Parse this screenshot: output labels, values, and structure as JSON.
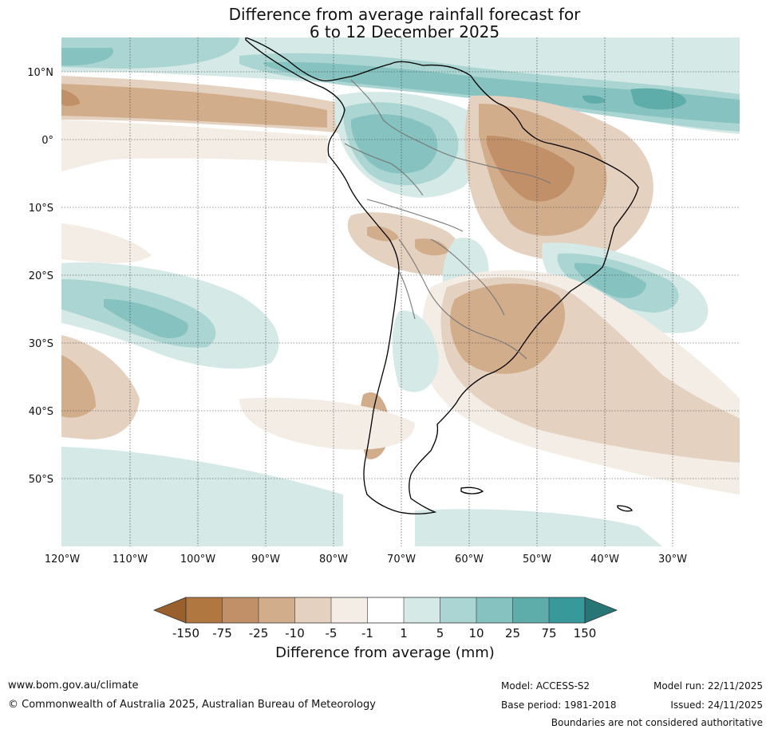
{
  "title": {
    "line1": "Difference from average rainfall forecast for",
    "line2": "6 to 12 December 2025"
  },
  "axes": {
    "lat_labels": [
      "10°N",
      "0°",
      "10°S",
      "20°S",
      "30°S",
      "40°S",
      "50°S"
    ],
    "lon_labels": [
      "120°W",
      "110°W",
      "100°W",
      "90°W",
      "80°W",
      "70°W",
      "60°W",
      "50°W",
      "40°W",
      "30°W"
    ]
  },
  "colorbar": {
    "tick_labels": [
      "-150",
      "-75",
      "-25",
      "-10",
      "-5",
      "-1",
      "1",
      "5",
      "10",
      "25",
      "75",
      "150"
    ],
    "colors": [
      "#99602d",
      "#b07840",
      "#c29068",
      "#d1ad8c",
      "#e4d1c0",
      "#f4ede6",
      "#ffffff",
      "#d5e9e6",
      "#abd5d2",
      "#85c2c0",
      "#5fadab",
      "#37999a",
      "#277575"
    ],
    "label": "Difference from average (mm)"
  },
  "footer": {
    "website": "www.bom.gov.au/climate",
    "copyright": "© Commonwealth of Australia 2025, Australian Bureau of Meteorology",
    "model": "Model: ACCESS-S2",
    "base_period": "Base period: 1981-2018",
    "model_run": "Model run: 22/11/2025",
    "issued": "Issued: 24/11/2025",
    "disclaimer": "Boundaries are not considered authoritative"
  }
}
